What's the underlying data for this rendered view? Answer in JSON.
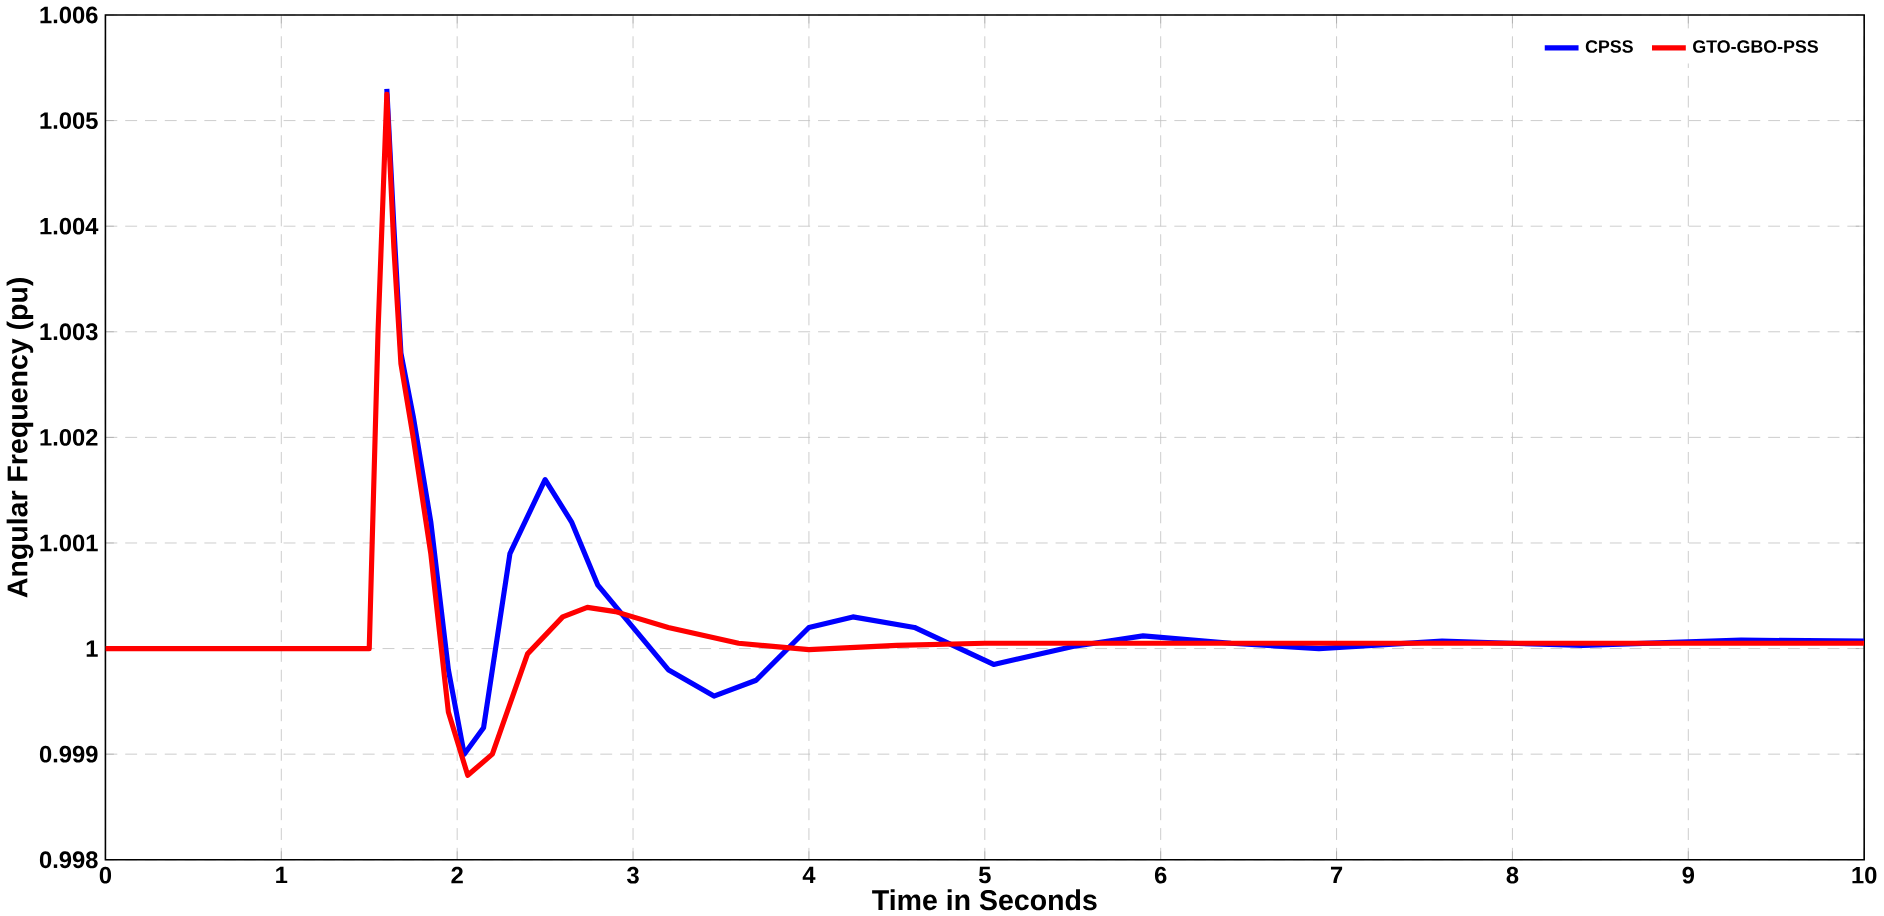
{
  "chart_data": {
    "type": "line",
    "xlabel": "Time in Seconds",
    "ylabel": "Angular Frequency (pu)",
    "xlim": [
      0,
      10
    ],
    "ylim": [
      0.998,
      1.006
    ],
    "xticks": [
      0,
      1,
      2,
      3,
      4,
      5,
      6,
      7,
      8,
      9,
      10
    ],
    "yticks": [
      0.998,
      0.999,
      1,
      1.001,
      1.002,
      1.003,
      1.004,
      1.005,
      1.006
    ],
    "grid": true,
    "legend": "top right",
    "series": [
      {
        "name": "CPSS",
        "color": "#0000ff",
        "x": [
          1.6,
          1.64,
          1.68,
          1.75,
          1.85,
          1.95,
          2.04,
          2.15,
          2.3,
          2.5,
          2.65,
          2.8,
          2.95,
          3.2,
          3.46,
          3.7,
          4.0,
          4.25,
          4.6,
          5.05,
          5.5,
          5.9,
          6.4,
          6.9,
          7.6,
          8.4,
          9.3,
          10
        ],
        "values": [
          1.0053,
          1.004,
          1.0028,
          1.0022,
          1.0012,
          0.9998,
          0.999,
          0.99925,
          1.0009,
          1.0016,
          1.0012,
          1.0006,
          1.0003,
          0.9998,
          0.99955,
          0.9997,
          1.0002,
          1.0003,
          1.0002,
          0.99985,
          1.00002,
          1.00012,
          1.00005,
          1.0,
          1.00007,
          1.00003,
          1.00008,
          1.00007
        ]
      },
      {
        "name": "GTO-GBO-PSS",
        "color": "#ff0000",
        "x": [
          0,
          1.5,
          1.55,
          1.6,
          1.64,
          1.68,
          1.75,
          1.85,
          1.95,
          2.06,
          2.2,
          2.4,
          2.6,
          2.74,
          2.9,
          3.2,
          3.6,
          4.0,
          4.5,
          5.0,
          6.0,
          7.0,
          8.0,
          9.0,
          10
        ],
        "values": [
          1,
          1,
          1.003,
          1.00525,
          1.0038,
          1.0027,
          1.002,
          1.0009,
          0.9994,
          0.9988,
          0.999,
          0.99995,
          1.0003,
          1.00039,
          1.00035,
          1.0002,
          1.00005,
          0.99999,
          1.00003,
          1.00005,
          1.00005,
          1.00005,
          1.00005,
          1.00005,
          1.00005
        ]
      }
    ]
  }
}
